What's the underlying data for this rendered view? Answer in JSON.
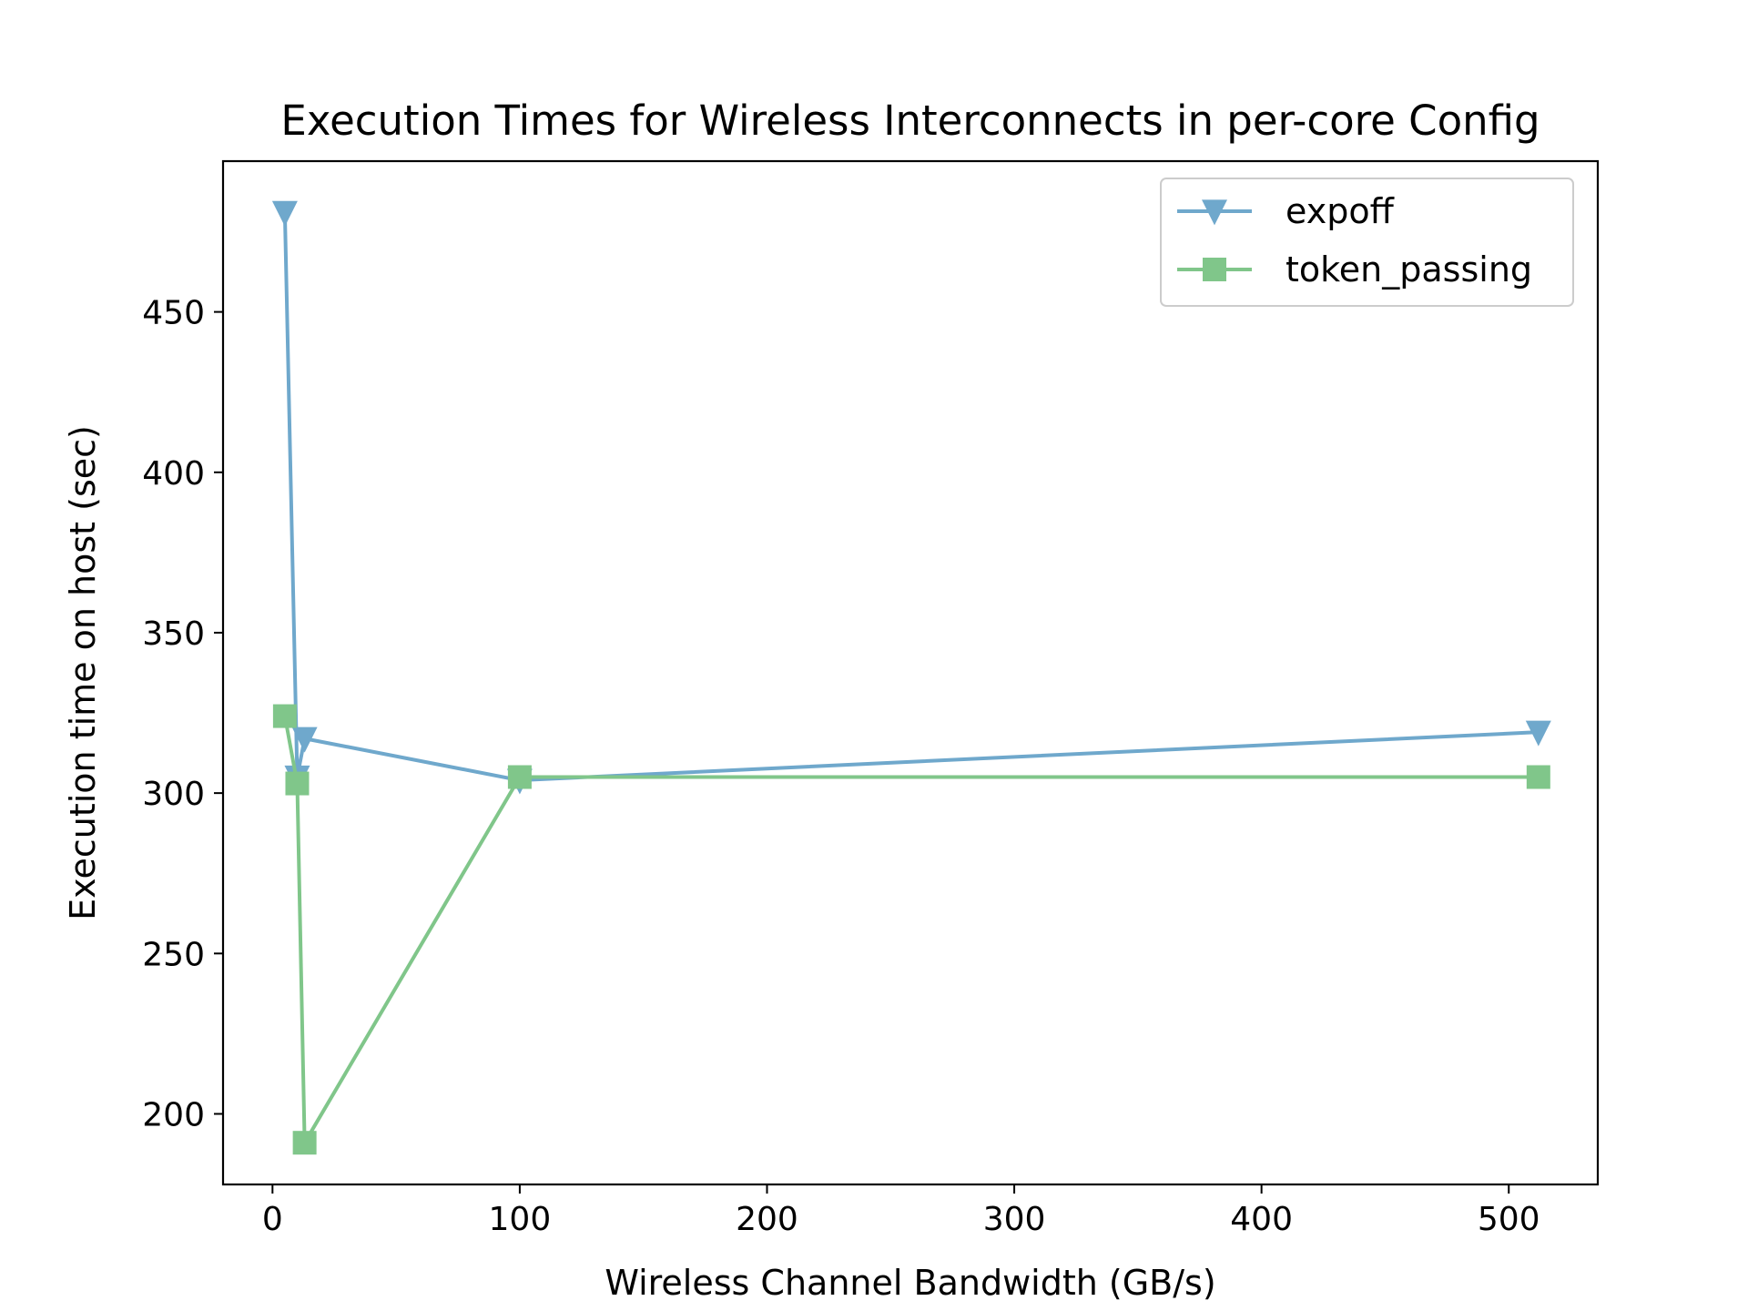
{
  "chart_data": {
    "type": "line",
    "title": "Execution Times for Wireless Interconnects in per-core Config",
    "xlabel": "Wireless Channel Bandwidth (GB/s)",
    "ylabel": "Execution time on host (sec)",
    "xlim": [
      -20,
      536
    ],
    "ylim": [
      178,
      497
    ],
    "xticks": [
      0,
      100,
      200,
      300,
      400,
      500
    ],
    "yticks": [
      200,
      250,
      300,
      350,
      400,
      450
    ],
    "grid": false,
    "legend_position": "top-right",
    "series": [
      {
        "name": "expoff",
        "color": "#6fa8cc",
        "marker": "triangle-down",
        "x": [
          5,
          10,
          13,
          100,
          512
        ],
        "y": [
          481,
          305,
          317,
          304,
          319
        ]
      },
      {
        "name": "token_passing",
        "color": "#80c68a",
        "marker": "square",
        "x": [
          5,
          10,
          13,
          100,
          512
        ],
        "y": [
          324,
          303,
          191,
          305,
          305
        ]
      }
    ]
  }
}
